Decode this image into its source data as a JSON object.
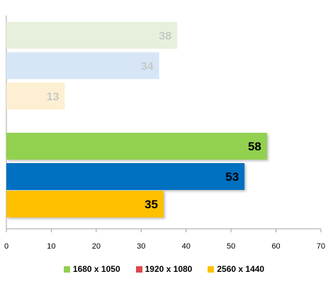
{
  "chart_data": {
    "type": "bar",
    "orientation": "horizontal",
    "xlim": [
      0,
      70
    ],
    "x_ticks": [
      0,
      10,
      20,
      30,
      40,
      50,
      60,
      70
    ],
    "grid": false,
    "legend_position": "bottom",
    "groups": [
      {
        "faded": true,
        "bars": [
          {
            "series": "1680 x 1050",
            "value": 38
          },
          {
            "series": "1920 x 1080",
            "value": 34
          },
          {
            "series": "2560 x 1440",
            "value": 13
          }
        ]
      },
      {
        "faded": false,
        "bars": [
          {
            "series": "1680 x 1050",
            "value": 58
          },
          {
            "series": "1920 x 1080",
            "value": 53
          },
          {
            "series": "2560 x 1440",
            "value": 35
          }
        ]
      }
    ],
    "series": [
      {
        "name": "1680 x 1050",
        "color": "#92d050"
      },
      {
        "name": "1920 x 1080",
        "color": "#0070c0",
        "legend_color": "#e0474c"
      },
      {
        "name": "2560 x 1440",
        "color": "#ffc000"
      }
    ],
    "faded_colors": {
      "1680 x 1050": "#e6f0dc",
      "1920 x 1080": "#d6e6f6",
      "2560 x 1440": "#fdf0d2"
    },
    "faded_label_color": "#c8c8c8",
    "label_color": "#000000"
  }
}
